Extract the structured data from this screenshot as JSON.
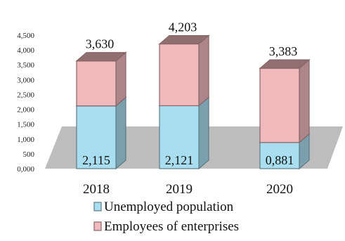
{
  "chart_data": {
    "type": "bar",
    "stacked": true,
    "three_d": true,
    "categories": [
      "2018",
      "2019",
      "2020"
    ],
    "series": [
      {
        "name": "Unemployed population",
        "values": [
          2.115,
          2.121,
          0.881
        ],
        "labels": [
          "2,115",
          "2,121",
          "0,881"
        ],
        "color": "#a9def0"
      },
      {
        "name": "Employees of enterprises",
        "values": [
          1.515,
          2.082,
          2.502
        ],
        "labels": [
          "3,630",
          "4,203",
          "3,383"
        ],
        "color": "#f2b9bd"
      }
    ],
    "ylim": [
      0,
      4.5
    ],
    "yticks": [
      "0,000",
      "500",
      "1,000",
      "1,500",
      "2,000",
      "2,500",
      "3,000",
      "3,500",
      "4,000",
      "4,500"
    ],
    "legend_position": "bottom",
    "grid": false
  }
}
